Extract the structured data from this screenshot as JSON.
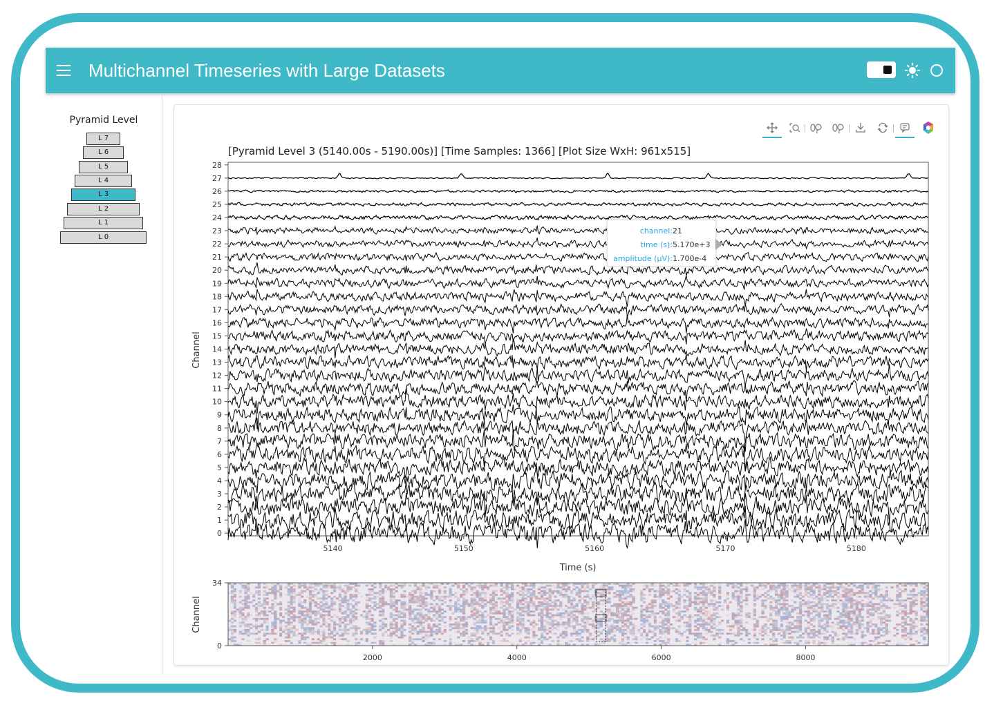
{
  "app": {
    "title": "Multichannel Timeseries with Large Datasets"
  },
  "sidebar": {
    "pyramid_title": "Pyramid Level",
    "levels": [
      "L 7",
      "L 6",
      "L 5",
      "L 4",
      "L 3",
      "L 2",
      "L 1",
      "L 0"
    ],
    "active_level": "L 3"
  },
  "toolbar": {
    "tools": [
      "pan-icon",
      "box-zoom-icon",
      "wheel-zoom-x-icon",
      "wheel-zoom-y-icon",
      "save-icon",
      "reset-icon",
      "hover-icon",
      "bokeh-logo-icon"
    ],
    "active_tools": [
      "pan-icon",
      "hover-icon"
    ]
  },
  "main_plot": {
    "title": "[Pyramid Level 3 (5140.00s - 5190.00s)]   [Time Samples: 1366]  [Plot Size WxH: 961x515]",
    "xlabel": "Time (s)",
    "ylabel": "Channel"
  },
  "tooltip": {
    "rows": [
      {
        "key": "channel:",
        "value": "21"
      },
      {
        "key": "time (s):",
        "value": "5.170e+3"
      },
      {
        "key": "amplitude (µV):",
        "value": "1.700e-4"
      }
    ]
  },
  "minimap": {
    "ylabel": "Channel"
  },
  "colors": {
    "accent": "#3fb9c8",
    "trace": "#000000",
    "selection": "#3fb9c8"
  },
  "chart_data": [
    {
      "type": "line",
      "title": "[Pyramid Level 3 (5140.00s - 5190.00s)]   [Time Samples: 1366]  [Plot Size WxH: 961x515]",
      "xlabel": "Time (s)",
      "ylabel": "Channel",
      "xlim": [
        5132,
        5185.5
      ],
      "ylim": [
        -0.2,
        28.2
      ],
      "xticks": [
        5140,
        5150,
        5160,
        5170,
        5180
      ],
      "yticks": [
        0,
        1,
        2,
        3,
        4,
        5,
        6,
        7,
        8,
        9,
        10,
        11,
        12,
        13,
        14,
        15,
        16,
        17,
        18,
        19,
        20,
        21,
        22,
        23,
        24,
        25,
        26,
        27,
        28
      ],
      "channels": 28,
      "channel_offsets": [
        0,
        1,
        2,
        3,
        4,
        5,
        6,
        7,
        8,
        9,
        10,
        11,
        12,
        13,
        14,
        15,
        16,
        17,
        18,
        19,
        20,
        21,
        22,
        23,
        24,
        25,
        26,
        27
      ],
      "grid": false,
      "legend": "none"
    },
    {
      "type": "heatmap",
      "title": "",
      "xlabel": "",
      "ylabel": "Channel",
      "xlim": [
        0,
        9700
      ],
      "ylim": [
        0,
        34
      ],
      "xticks": [
        2000,
        4000,
        6000,
        8000
      ],
      "yticks": [
        0,
        34
      ],
      "selection_x": [
        5140,
        5190
      ]
    }
  ]
}
